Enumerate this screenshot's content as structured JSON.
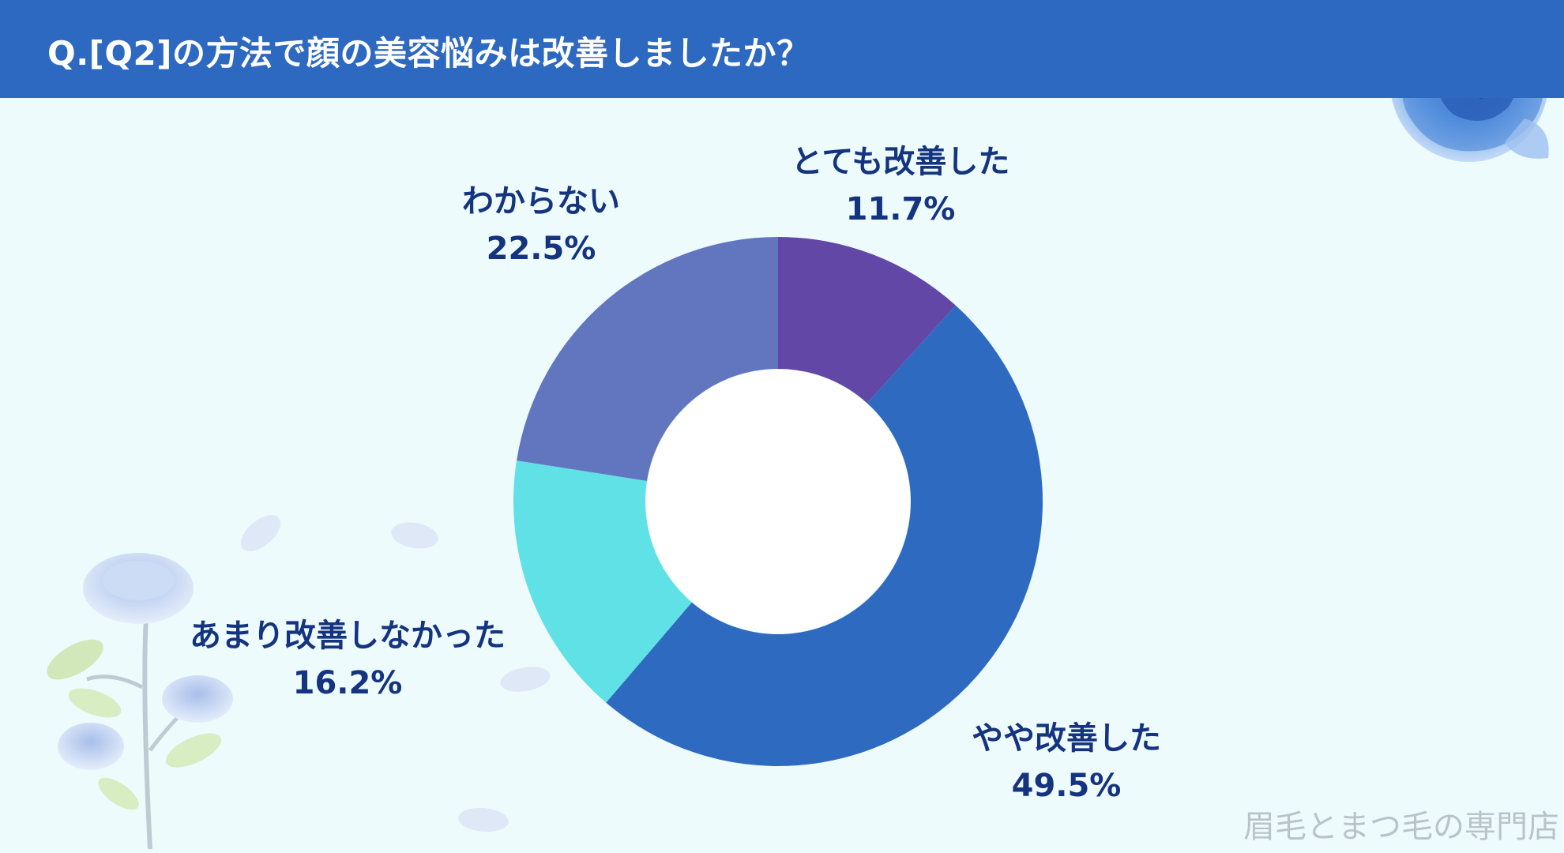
{
  "header": {
    "title": "Q.[Q2]の方法で顔の美容悩みは改善しましたか？"
  },
  "watermark": "眉毛とまつ毛の専門店",
  "colors": {
    "background": "#eefbfd",
    "header": "#2d69c0",
    "label_text": "#15347f"
  },
  "chart_data": {
    "type": "pie",
    "style": "donut",
    "title": "Q.[Q2]の方法で顔の美容悩みは改善しましたか？",
    "legend": "none",
    "slices": [
      {
        "label": "とても改善した",
        "value": 11.7,
        "value_text": "11.7%",
        "color": "#6247a6"
      },
      {
        "label": "やや改善した",
        "value": 49.5,
        "value_text": "49.5%",
        "color": "#2e6bc0"
      },
      {
        "label": "あまり改善しなかった",
        "value": 16.2,
        "value_text": "16.2%",
        "color": "#5fe1e6"
      },
      {
        "label": "わからない",
        "value": 22.5,
        "value_text": "22.5%",
        "color": "#6276c0"
      }
    ]
  },
  "decorations": {
    "top_right": "rose-illustration",
    "bottom_left": "rose-branch-illustration"
  }
}
